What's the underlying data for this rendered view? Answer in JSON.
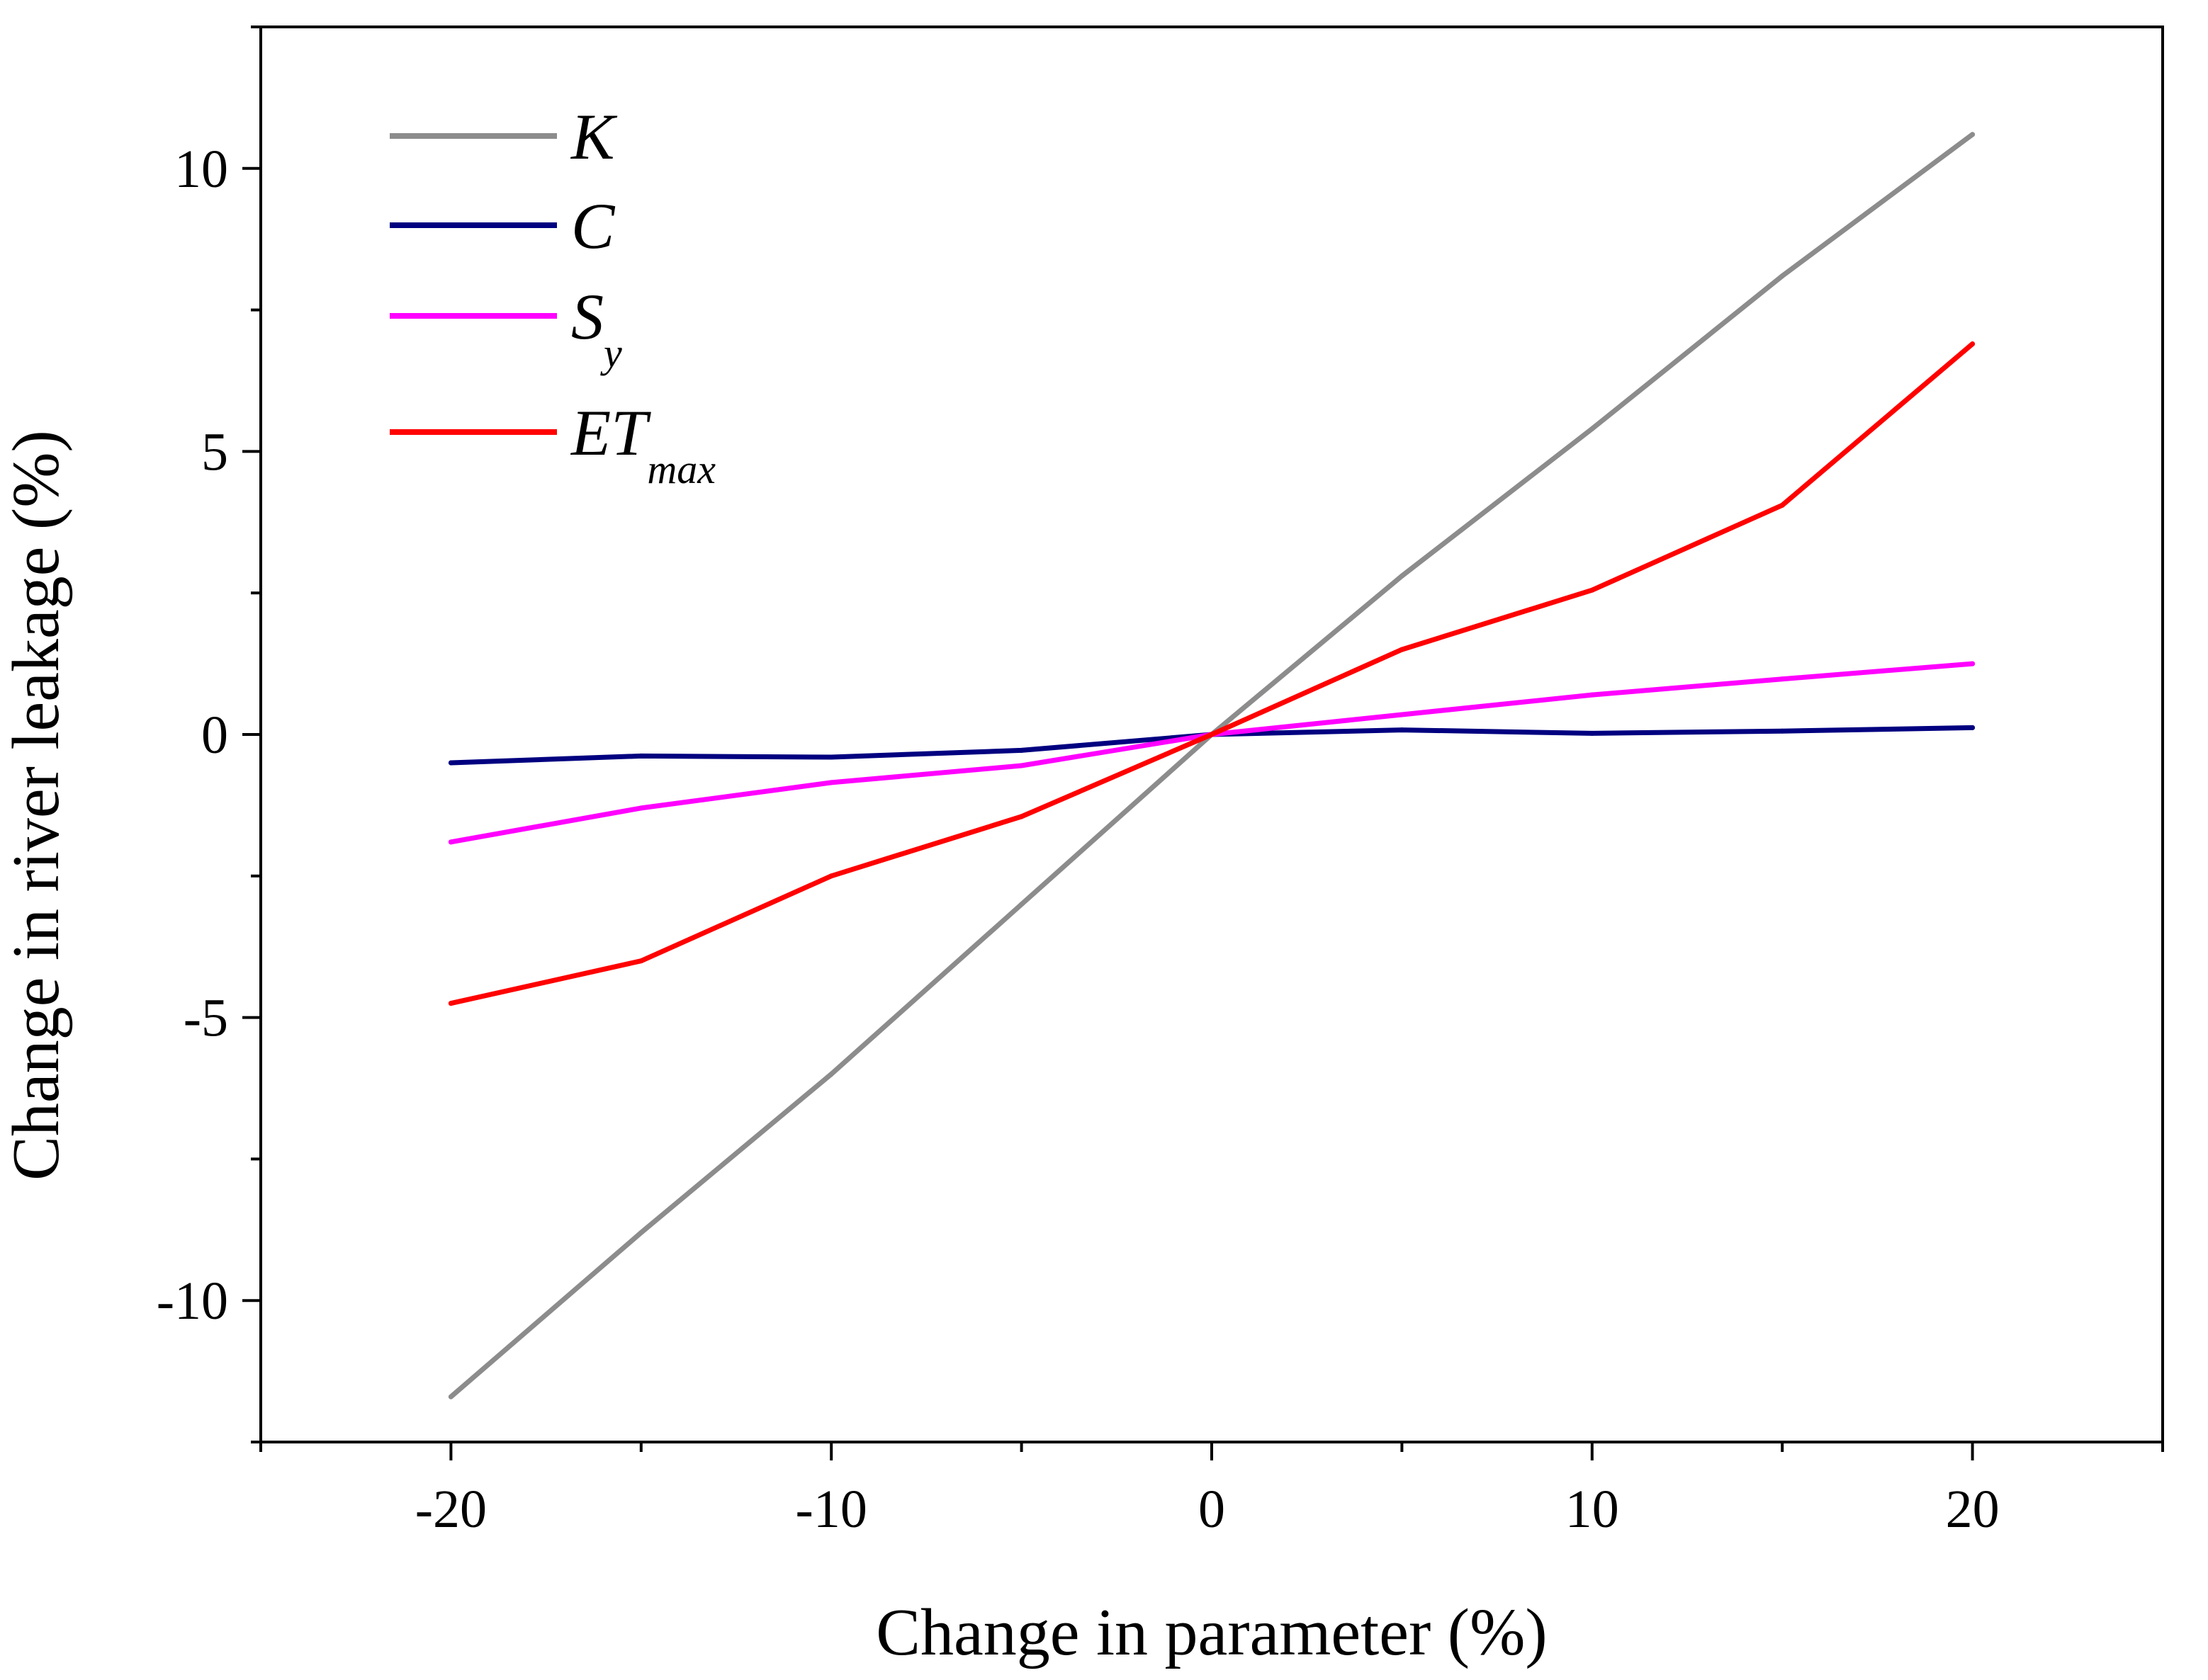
{
  "chart_data": {
    "type": "line",
    "title": "",
    "xlabel": "Change in parameter (%)",
    "ylabel": "Change in river leakage (%)",
    "xlim": [
      -25,
      25
    ],
    "ylim": [
      -12.5,
      12.5
    ],
    "xticks": [
      -20,
      -10,
      0,
      10,
      20
    ],
    "yticks": [
      -10,
      -5,
      0,
      5,
      10
    ],
    "x": [
      -20,
      -15,
      -10,
      -5,
      0,
      5,
      10,
      15,
      20
    ],
    "legend_position": "top-left",
    "series": [
      {
        "name": "K",
        "name_sub": "",
        "color": "#8c8c8c",
        "values": [
          -11.7,
          -8.8,
          -6.0,
          -3.0,
          0.0,
          2.8,
          5.4,
          8.1,
          10.6
        ]
      },
      {
        "name": "C",
        "name_sub": "",
        "color": "#000080",
        "values": [
          -0.5,
          -0.38,
          -0.4,
          -0.28,
          0.0,
          0.08,
          0.02,
          0.06,
          0.12
        ]
      },
      {
        "name": "S",
        "name_sub": "y",
        "color": "#ff00ff",
        "values": [
          -1.9,
          -1.3,
          -0.85,
          -0.55,
          0.0,
          0.35,
          0.7,
          0.98,
          1.25
        ]
      },
      {
        "name": "ET",
        "name_sub": "max",
        "color": "#ff0000",
        "values": [
          -4.75,
          -4.0,
          -2.5,
          -1.45,
          0.0,
          1.5,
          2.55,
          4.05,
          6.9
        ]
      }
    ]
  }
}
